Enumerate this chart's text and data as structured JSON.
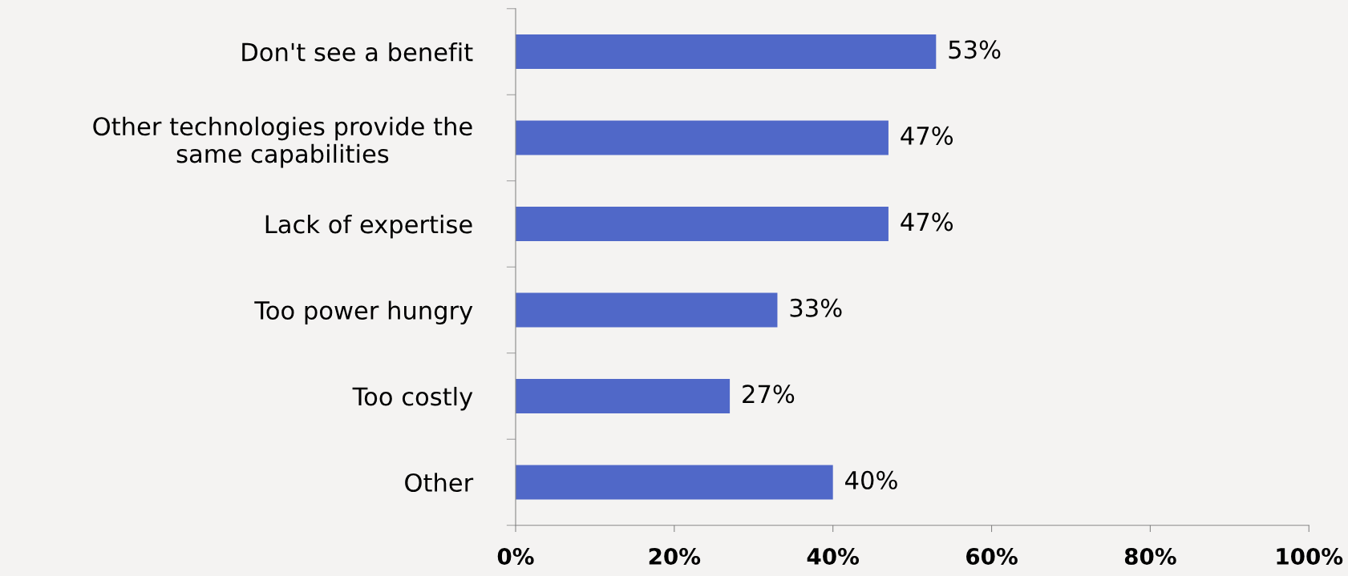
{
  "chart_data": {
    "type": "bar",
    "orientation": "horizontal",
    "categories": [
      "Don't see a benefit",
      "Other technologies provide the\nsame capabilities",
      "Lack of expertise",
      "Too power hungry",
      "Too costly",
      "Other"
    ],
    "values": [
      53,
      47,
      47,
      33,
      27,
      40
    ],
    "value_labels": [
      "53%",
      "47%",
      "47%",
      "33%",
      "27%",
      "40%"
    ],
    "color": "#5068c8",
    "xlim": [
      0,
      100
    ],
    "xticks": [
      {
        "value": 0,
        "label": "0%"
      },
      {
        "value": 20,
        "label": "20%"
      },
      {
        "value": 40,
        "label": "40%"
      },
      {
        "value": 60,
        "label": "60%"
      },
      {
        "value": 80,
        "label": "80%"
      },
      {
        "value": 100,
        "label": "100%"
      }
    ],
    "grid": false
  }
}
